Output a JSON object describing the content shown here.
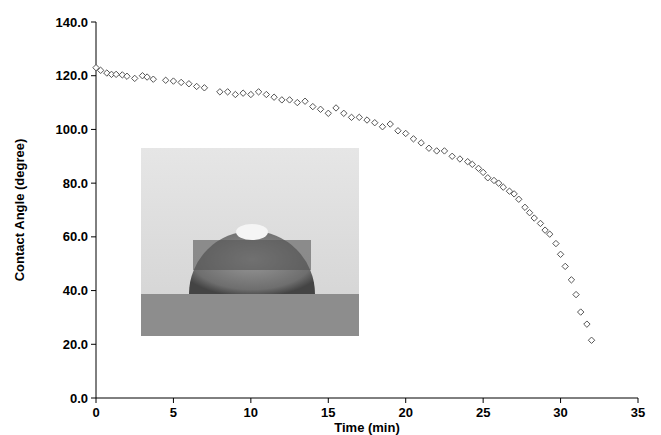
{
  "chart_data": {
    "type": "scatter",
    "x_label": "Time (min)",
    "y_label": "Contact Angle (degree)",
    "x": [
      0,
      0.3,
      0.7,
      1,
      1.3,
      1.7,
      2,
      2.5,
      3,
      3.3,
      3.7,
      4.5,
      5,
      5.5,
      6,
      6.5,
      7,
      8,
      8.5,
      9,
      9.5,
      10,
      10.5,
      11,
      11.5,
      12,
      12.5,
      13,
      13.5,
      14,
      14.5,
      15,
      15.5,
      16,
      16.5,
      17,
      17.5,
      18,
      18.5,
      19,
      19.5,
      20,
      20.5,
      21,
      21.5,
      22,
      22.5,
      23,
      23.5,
      24,
      24.3,
      24.7,
      25,
      25.3,
      25.7,
      26,
      26.3,
      26.7,
      27,
      27.3,
      27.7,
      28,
      28.3,
      28.7,
      29,
      29.3,
      29.7,
      30,
      30.3,
      30.7,
      31,
      31.3,
      31.7,
      32
    ],
    "values": [
      123,
      122,
      121,
      120.5,
      120.5,
      120.3,
      119.8,
      119,
      120,
      119.5,
      118.7,
      118.3,
      118,
      117.5,
      117,
      116,
      115.5,
      114,
      114,
      113,
      113.5,
      113,
      114,
      113,
      112,
      111,
      111,
      110,
      110.5,
      108.5,
      107.5,
      106,
      108,
      106,
      104.5,
      104.5,
      103.5,
      102.5,
      101,
      102,
      99.5,
      98.5,
      96.5,
      95,
      93,
      92,
      92,
      90,
      89,
      88,
      87,
      85.5,
      84,
      82,
      81,
      80,
      78.5,
      77,
      76,
      74,
      71,
      69,
      67,
      65,
      62.5,
      61,
      57.5,
      53.5,
      49,
      44,
      38.5,
      32,
      27.5,
      21.5
    ],
    "color": "#555555",
    "marker": "diamond",
    "xlim": [
      0,
      35
    ],
    "xticks": [
      0,
      5,
      10,
      15,
      20,
      25,
      30,
      35
    ],
    "ylim": [
      0,
      140
    ],
    "yticks": [
      {
        "value": 0,
        "label": "0.0"
      },
      {
        "value": 20,
        "label": "20.0"
      },
      {
        "value": 40,
        "label": "40.0"
      },
      {
        "value": 60,
        "label": "60.0"
      },
      {
        "value": 80,
        "label": "80.0"
      },
      {
        "value": 100,
        "label": "100.0"
      },
      {
        "value": 120,
        "label": "120.0"
      },
      {
        "value": 140,
        "label": "140.0"
      }
    ],
    "grid": false
  }
}
